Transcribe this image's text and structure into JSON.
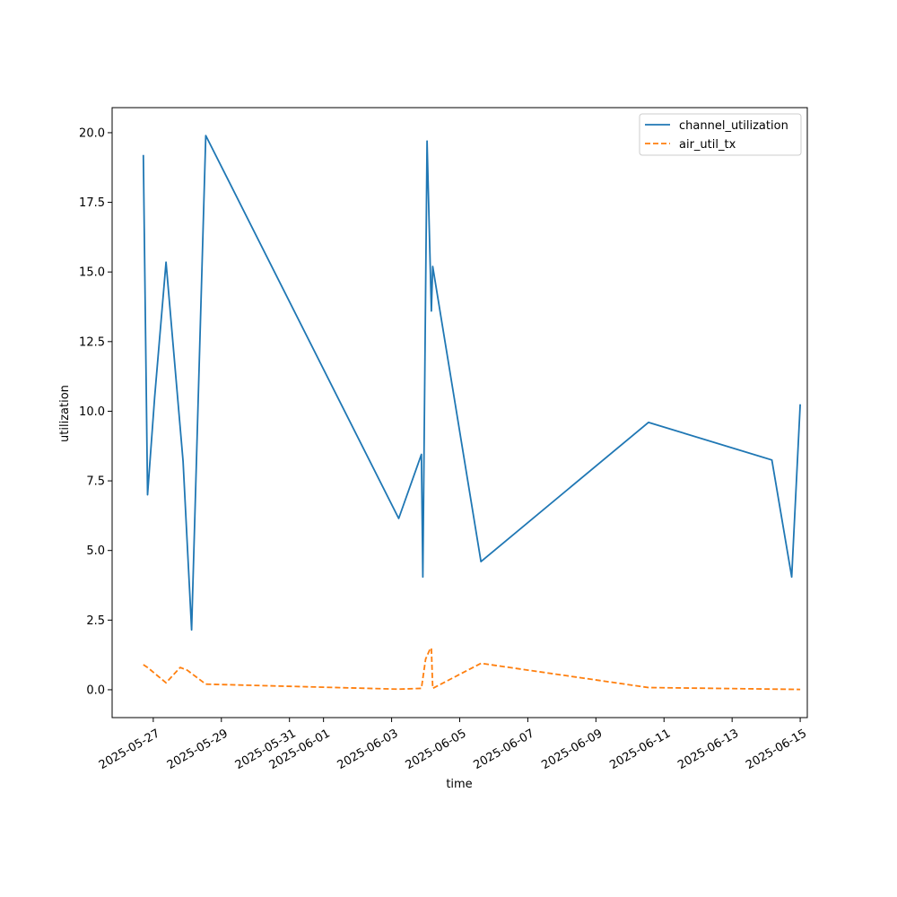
{
  "chart_data": {
    "type": "line",
    "title": "",
    "xlabel": "time",
    "ylabel": "utilization",
    "x_ticks": [
      "2025-05-27",
      "2025-05-29",
      "2025-05-31",
      "2025-06-01",
      "2025-06-03",
      "2025-06-05",
      "2025-06-07",
      "2025-06-09",
      "2025-06-11",
      "2025-06-13",
      "2025-06-15"
    ],
    "y_ticks": [
      "0.0",
      "2.5",
      "5.0",
      "7.5",
      "10.0",
      "12.5",
      "15.0",
      "17.5",
      "20.0"
    ],
    "xlim": [
      "2025-05-25T19:00",
      "2025-06-15T05:00"
    ],
    "ylim": [
      -1.0,
      20.9
    ],
    "grid": false,
    "legend_position": "upper right",
    "series": [
      {
        "name": "channel_utilization",
        "color": "#1f77b4",
        "style": "solid",
        "points": [
          [
            "2025-05-26T17:00",
            19.2
          ],
          [
            "2025-05-26T20:00",
            7.0
          ],
          [
            "2025-05-27T01:00",
            10.5
          ],
          [
            "2025-05-27T09:00",
            15.35
          ],
          [
            "2025-05-27T21:00",
            8.2
          ],
          [
            "2025-05-28T03:00",
            2.15
          ],
          [
            "2025-05-28T13:00",
            19.9
          ],
          [
            "2025-06-03T05:00",
            6.15
          ],
          [
            "2025-06-03T21:00",
            8.45
          ],
          [
            "2025-06-03T22:00",
            4.05
          ],
          [
            "2025-06-04T01:00",
            19.7
          ],
          [
            "2025-06-04T04:00",
            13.6
          ],
          [
            "2025-06-04T05:00",
            15.2
          ],
          [
            "2025-06-05T15:00",
            4.6
          ],
          [
            "2025-06-10T13:00",
            9.6
          ],
          [
            "2025-06-14T04:00",
            8.25
          ],
          [
            "2025-06-14T18:00",
            4.05
          ],
          [
            "2025-06-15T00:00",
            10.25
          ]
        ]
      },
      {
        "name": "air_util_tx",
        "color": "#ff7f0e",
        "style": "dashed",
        "points": [
          [
            "2025-05-26T17:00",
            0.9
          ],
          [
            "2025-05-26T20:00",
            0.8
          ],
          [
            "2025-05-27T09:00",
            0.25
          ],
          [
            "2025-05-27T19:00",
            0.8
          ],
          [
            "2025-05-28T00:00",
            0.7
          ],
          [
            "2025-05-28T13:00",
            0.2
          ],
          [
            "2025-06-03T05:00",
            0.02
          ],
          [
            "2025-06-03T21:00",
            0.05
          ],
          [
            "2025-06-04T00:00",
            1.1
          ],
          [
            "2025-06-04T03:00",
            1.45
          ],
          [
            "2025-06-04T04:00",
            1.5
          ],
          [
            "2025-06-04T05:00",
            0.05
          ],
          [
            "2025-06-05T15:00",
            0.95
          ],
          [
            "2025-06-10T13:00",
            0.08
          ],
          [
            "2025-06-15T00:00",
            0.01
          ]
        ]
      }
    ]
  }
}
